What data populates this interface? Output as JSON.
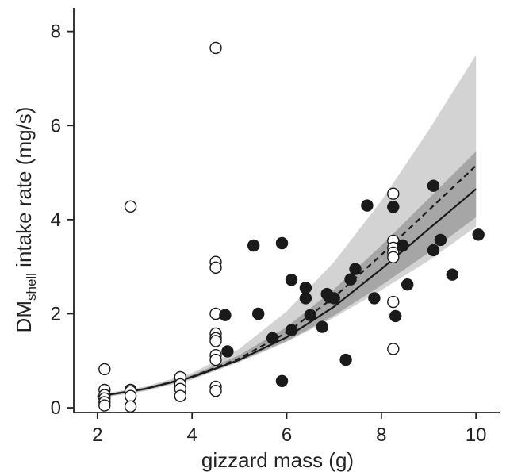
{
  "chart_data": {
    "type": "scatter",
    "xlabel": "gizzard mass (g)",
    "ylabel": {
      "main": "DM",
      "subscript": "shell",
      "rest": " intake rate (mg/s)"
    },
    "xlim": [
      1.5,
      10.5
    ],
    "ylim": [
      -0.1,
      8.5
    ],
    "xticks": [
      2,
      4,
      6,
      8,
      10
    ],
    "yticks": [
      0,
      2,
      4,
      6,
      8
    ],
    "grid": false,
    "series": [
      {
        "marker": "open-circle",
        "points": [
          [
            2.15,
            0.82
          ],
          [
            2.15,
            0.38
          ],
          [
            2.15,
            0.27
          ],
          [
            2.15,
            0.2
          ],
          [
            2.15,
            0.12
          ],
          [
            2.15,
            0.05
          ],
          [
            2.7,
            4.28
          ],
          [
            2.7,
            0.38
          ],
          [
            2.7,
            0.35
          ],
          [
            2.7,
            0.25
          ],
          [
            2.7,
            0.03
          ],
          [
            3.75,
            0.65
          ],
          [
            3.75,
            0.5
          ],
          [
            3.75,
            0.4
          ],
          [
            3.75,
            0.25
          ],
          [
            4.5,
            7.65
          ],
          [
            4.5,
            3.1
          ],
          [
            4.5,
            2.98
          ],
          [
            4.5,
            2.0
          ],
          [
            4.5,
            1.58
          ],
          [
            4.5,
            1.48
          ],
          [
            4.5,
            1.42
          ],
          [
            4.5,
            1.12
          ],
          [
            4.5,
            1.02
          ],
          [
            4.5,
            0.45
          ],
          [
            4.5,
            0.36
          ],
          [
            8.25,
            4.55
          ],
          [
            8.25,
            3.55
          ],
          [
            8.25,
            3.4
          ],
          [
            8.25,
            3.3
          ],
          [
            8.25,
            3.2
          ],
          [
            8.25,
            2.25
          ],
          [
            8.25,
            1.25
          ]
        ]
      },
      {
        "marker": "filled-circle",
        "points": [
          [
            4.7,
            1.97
          ],
          [
            4.75,
            1.2
          ],
          [
            5.3,
            3.45
          ],
          [
            5.4,
            2.0
          ],
          [
            5.7,
            1.48
          ],
          [
            5.9,
            3.5
          ],
          [
            5.9,
            0.57
          ],
          [
            6.1,
            2.72
          ],
          [
            6.1,
            1.65
          ],
          [
            6.4,
            2.55
          ],
          [
            6.4,
            2.33
          ],
          [
            6.5,
            1.97
          ],
          [
            6.75,
            1.72
          ],
          [
            6.85,
            2.42
          ],
          [
            6.9,
            2.35
          ],
          [
            7.0,
            2.33
          ],
          [
            7.25,
            1.02
          ],
          [
            7.35,
            2.73
          ],
          [
            7.45,
            2.95
          ],
          [
            7.7,
            4.3
          ],
          [
            7.85,
            2.33
          ],
          [
            8.25,
            4.27
          ],
          [
            8.3,
            1.95
          ],
          [
            8.45,
            3.45
          ],
          [
            8.55,
            2.62
          ],
          [
            9.1,
            4.72
          ],
          [
            9.1,
            3.35
          ],
          [
            9.25,
            3.57
          ],
          [
            9.5,
            2.83
          ],
          [
            10.05,
            3.68
          ]
        ]
      }
    ],
    "fits": [
      {
        "style": "dashed",
        "x": [
          2,
          3,
          4,
          5,
          6,
          7,
          8,
          9,
          10
        ],
        "y": [
          0.24,
          0.4,
          0.66,
          1.05,
          1.6,
          2.35,
          3.25,
          4.2,
          5.15
        ]
      },
      {
        "style": "solid",
        "x": [
          2,
          3,
          4,
          5,
          6,
          7,
          8,
          9,
          10
        ],
        "y": [
          0.24,
          0.4,
          0.65,
          1.02,
          1.5,
          2.15,
          2.95,
          3.8,
          4.65
        ]
      }
    ],
    "bands": [
      {
        "shade": "light",
        "x": [
          2,
          3,
          4,
          5,
          6,
          7,
          8,
          9,
          10
        ],
        "lower": [
          0.2,
          0.35,
          0.6,
          0.97,
          1.4,
          1.92,
          2.5,
          3.13,
          3.85
        ],
        "upper": [
          0.28,
          0.45,
          0.74,
          1.25,
          2.05,
          3.1,
          4.4,
          5.9,
          7.5
        ]
      },
      {
        "shade": "dark",
        "x": [
          2,
          3,
          4,
          5,
          6,
          7,
          8,
          9,
          10
        ],
        "lower": [
          0.21,
          0.37,
          0.62,
          0.99,
          1.42,
          1.96,
          2.6,
          3.3,
          4.05
        ],
        "upper": [
          0.26,
          0.43,
          0.7,
          1.12,
          1.72,
          2.52,
          3.45,
          4.45,
          5.45
        ]
      }
    ],
    "colors": {
      "band_light": "#d3d3d3",
      "band_dark": "#a6a6a6",
      "line": "#1a1a1a",
      "marker_fill": "#1a1a1a",
      "open_marker_fill": "#ffffff"
    }
  }
}
